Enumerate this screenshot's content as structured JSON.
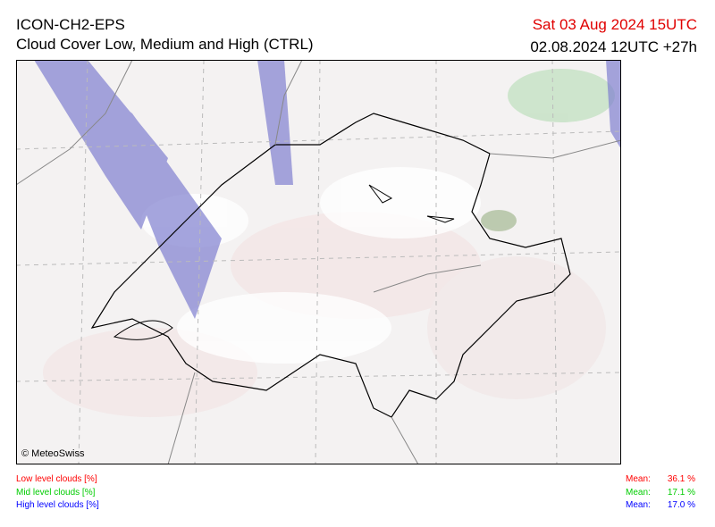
{
  "header": {
    "model": "ICON-CH2-EPS",
    "subtitle": "Cloud Cover Low, Medium and High (CTRL)",
    "valid_time": "Sat 03 Aug 2024 15UTC",
    "run_time": "02.08.2024 12UTC +27h"
  },
  "map": {
    "copyright": "© MeteoSwiss"
  },
  "legend": [
    {
      "label": "Low level clouds [%]",
      "mean_label": "Mean:",
      "mean": "36.1 %",
      "color": "#ff0000"
    },
    {
      "label": "Mid level clouds [%]",
      "mean_label": "Mean:",
      "mean": "17.1 %",
      "color": "#00cc00"
    },
    {
      "label": "High level clouds [%]",
      "mean_label": "Mean:",
      "mean": "17.0 %",
      "color": "#0000ff"
    }
  ]
}
